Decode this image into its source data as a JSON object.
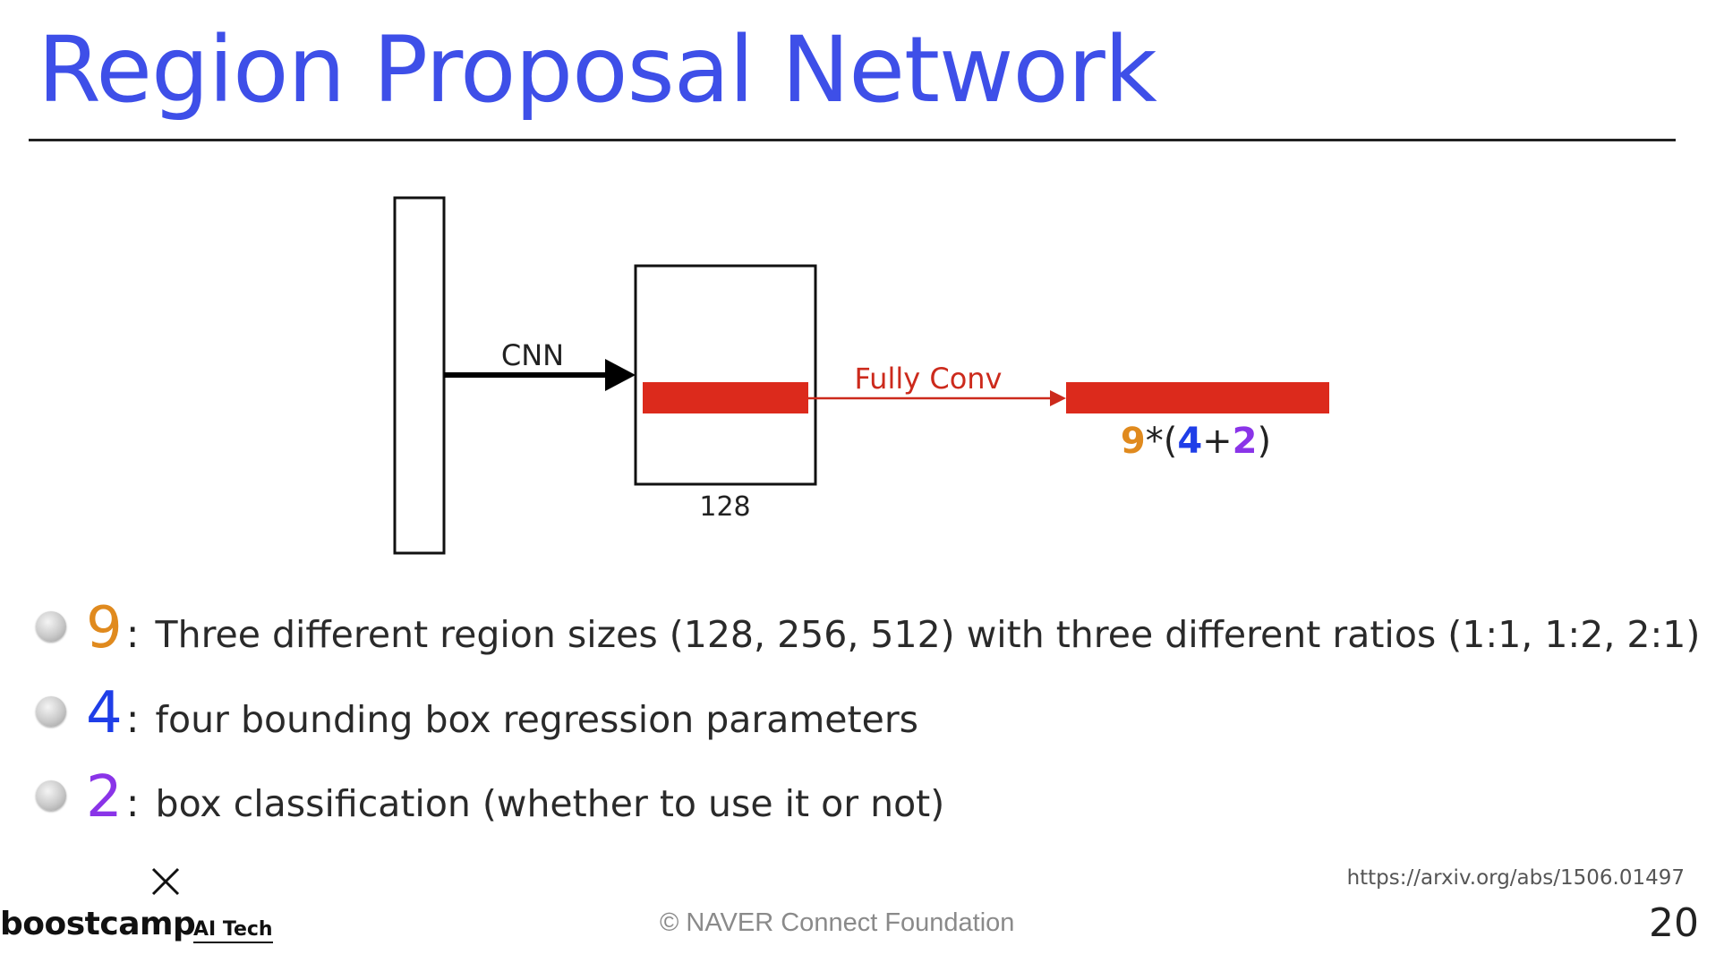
{
  "slide": {
    "title": "Region Proposal Network",
    "page_number": "20",
    "source_url": "https://arxiv.org/abs/1506.01497",
    "copyright": "©  NAVER Connect Foundation",
    "logo": {
      "main": "boostcamp",
      "sub": "AI Tech",
      "icon": "x-mark-icon"
    }
  },
  "diagram": {
    "cnn_label": "CNN",
    "size_label": "128",
    "fc_label": "Fully Conv",
    "formula": {
      "n9": "9",
      "star": "*",
      "open": "(",
      "n4": "4",
      "plus": "+",
      "n2": "2",
      "close": ")"
    },
    "colors": {
      "feature_bar": "#dc2a1c",
      "fc_arrow": "#cc2a1c",
      "cnn_arrow": "#000000",
      "n9": "#e08a1e",
      "n4": "#1f3ee8",
      "n2": "#8a34e8"
    }
  },
  "bullets": [
    {
      "num": "9",
      "colon": ":",
      "text": "Three different region sizes (128, 256, 512) with three different ratios (1:1, 1:2, 2:1)"
    },
    {
      "num": "4",
      "colon": ":",
      "text": "four bounding box regression parameters"
    },
    {
      "num": "2",
      "colon": ":",
      "text": "box classification (whether to use it or not)"
    }
  ]
}
